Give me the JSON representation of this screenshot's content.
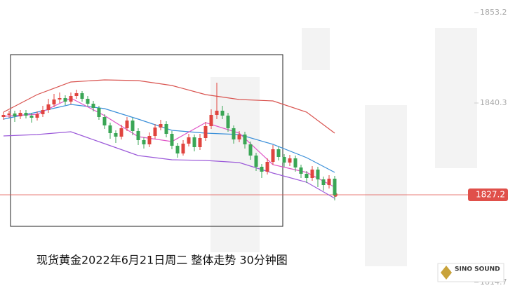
{
  "chart_data": {
    "type": "candlestick",
    "caption": "现货黄金2022年6月21日周二 整体走势 30分钟图",
    "logo": "SINO SOUND",
    "ylim": [
      1813.9,
      1855.0
    ],
    "yticks": [
      1853.2,
      1840.3,
      1814.7
    ],
    "last_price": 1827.2,
    "up_color": "#e0443f",
    "down_color": "#3aa655",
    "open": [
      1838.3,
      1838.6,
      1838.8,
      1838.4,
      1838.9,
      1838.5,
      1838.2,
      1838.7,
      1839.3,
      1840.1,
      1840.8,
      1841.0,
      1840.5,
      1841.3,
      1841.7,
      1840.9,
      1840.2,
      1839.6,
      1838.3,
      1837.1,
      1836.0,
      1835.5,
      1836.7,
      1837.8,
      1836.3,
      1835.0,
      1834.4,
      1835.6,
      1836.8,
      1837.3,
      1835.9,
      1834.2,
      1833.1,
      1834.5,
      1835.4,
      1834.0,
      1835.3,
      1837.0,
      1838.6,
      1839.2,
      1838.5,
      1836.7,
      1835.1,
      1835.8,
      1834.4,
      1832.8,
      1831.2,
      1830.5,
      1831.9,
      1833.7,
      1832.6,
      1831.8,
      1832.4,
      1831.1,
      1830.2,
      1829.6,
      1830.8,
      1829.4,
      1828.6,
      1829.5
    ],
    "close": [
      1838.6,
      1838.8,
      1838.4,
      1838.9,
      1838.5,
      1838.2,
      1838.7,
      1839.3,
      1840.1,
      1840.8,
      1841.0,
      1840.5,
      1841.3,
      1841.7,
      1840.9,
      1840.2,
      1839.6,
      1838.3,
      1837.1,
      1836.0,
      1835.5,
      1836.7,
      1837.8,
      1836.3,
      1835.0,
      1834.4,
      1835.6,
      1836.8,
      1837.3,
      1835.9,
      1834.2,
      1833.1,
      1834.5,
      1835.4,
      1834.0,
      1835.3,
      1837.0,
      1838.6,
      1839.2,
      1838.5,
      1836.7,
      1835.1,
      1835.8,
      1834.4,
      1832.8,
      1831.2,
      1830.5,
      1831.9,
      1833.7,
      1832.6,
      1831.8,
      1832.4,
      1831.1,
      1830.2,
      1829.6,
      1830.8,
      1829.4,
      1828.6,
      1829.5,
      1827.2
    ],
    "high": [
      1839.0,
      1839.2,
      1839.2,
      1839.3,
      1839.3,
      1838.9,
      1839.1,
      1839.9,
      1840.9,
      1841.6,
      1841.8,
      1841.4,
      1841.8,
      1842.2,
      1842.0,
      1841.3,
      1840.6,
      1839.9,
      1838.7,
      1837.5,
      1836.4,
      1837.2,
      1838.3,
      1838.2,
      1836.7,
      1835.4,
      1836.1,
      1837.3,
      1837.9,
      1837.7,
      1836.3,
      1834.6,
      1835.0,
      1835.9,
      1835.8,
      1835.9,
      1837.6,
      1839.4,
      1843.2,
      1839.9,
      1838.9,
      1837.1,
      1836.3,
      1836.2,
      1834.8,
      1833.2,
      1831.6,
      1832.4,
      1834.3,
      1834.1,
      1833.0,
      1832.9,
      1832.8,
      1831.5,
      1830.6,
      1831.3,
      1831.2,
      1829.8,
      1830.0,
      1829.9
    ],
    "low": [
      1837.9,
      1838.2,
      1837.6,
      1838.0,
      1838.1,
      1837.5,
      1837.8,
      1838.3,
      1838.9,
      1839.7,
      1840.3,
      1840.0,
      1840.1,
      1840.9,
      1840.5,
      1839.8,
      1839.1,
      1837.9,
      1836.6,
      1835.2,
      1834.6,
      1835.1,
      1836.3,
      1835.7,
      1834.3,
      1833.8,
      1834.0,
      1835.2,
      1836.4,
      1835.4,
      1833.7,
      1832.5,
      1832.8,
      1834.1,
      1833.4,
      1833.6,
      1834.9,
      1836.6,
      1838.0,
      1838.0,
      1836.2,
      1834.5,
      1834.7,
      1833.8,
      1832.2,
      1830.6,
      1829.6,
      1830.1,
      1831.5,
      1832.1,
      1831.2,
      1831.3,
      1830.5,
      1829.6,
      1828.9,
      1829.2,
      1828.3,
      1827.8,
      1828.1,
      1826.4
    ],
    "lines": [
      {
        "color": "#d9534f",
        "x": [
          0,
          6,
          12,
          18,
          24,
          30,
          36,
          42,
          48,
          54,
          59
        ],
        "values": [
          1839.0,
          1841.5,
          1843.3,
          1843.6,
          1843.5,
          1842.8,
          1841.5,
          1840.8,
          1840.6,
          1839.0,
          1836.0
        ]
      },
      {
        "color": "#3a8fd9",
        "x": [
          0,
          6,
          12,
          18,
          24,
          30,
          36,
          42,
          48,
          54,
          59
        ],
        "values": [
          1838.0,
          1839.0,
          1840.1,
          1839.5,
          1838.0,
          1836.4,
          1836.0,
          1835.8,
          1834.4,
          1832.5,
          1830.4
        ]
      },
      {
        "color": "#9b59d9",
        "x": [
          0,
          6,
          12,
          18,
          24,
          30,
          36,
          42,
          48,
          54,
          59
        ],
        "values": [
          1835.6,
          1835.8,
          1836.2,
          1834.5,
          1832.8,
          1832.2,
          1832.1,
          1831.8,
          1830.3,
          1829.0,
          1826.7
        ]
      },
      {
        "color": "#e055c8",
        "x": [
          0,
          6,
          12,
          18,
          24,
          30,
          36,
          42,
          48,
          54,
          59
        ],
        "values": [
          1838.4,
          1838.7,
          1841.0,
          1838.5,
          1835.5,
          1834.8,
          1837.5,
          1836.0,
          1831.5,
          1830.4,
          1828.3
        ]
      }
    ]
  }
}
